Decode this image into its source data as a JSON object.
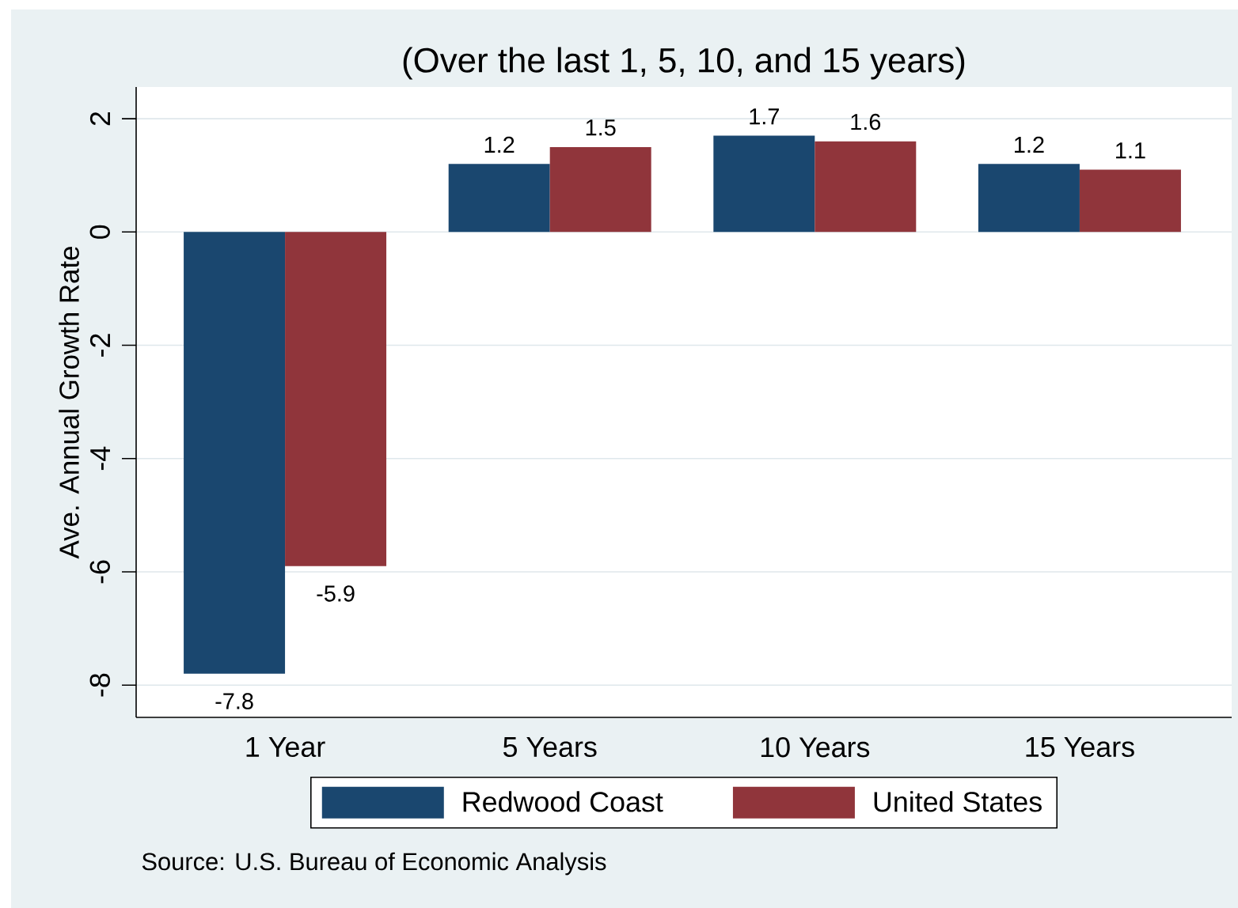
{
  "chart_data": {
    "type": "bar",
    "subtitle": "(Over the last 1, 5, 10, and 15 years)",
    "ylabel": "Ave. Annual Growth Rate",
    "categories": [
      "1 Year",
      "5 Years",
      "10 Years",
      "15 Years"
    ],
    "series": [
      {
        "name": "Redwood Coast",
        "color": "#1a476f",
        "values": [
          -7.8,
          1.2,
          1.7,
          1.2
        ]
      },
      {
        "name": "United States",
        "color": "#90353b",
        "values": [
          -5.9,
          1.5,
          1.6,
          1.1
        ]
      }
    ],
    "ylim": [
      -8.57,
      2.56
    ],
    "yticks": [
      -8,
      -6,
      -4,
      -2,
      0,
      2
    ],
    "grid": "y",
    "legend": "bottom",
    "data_labels": true,
    "annotations": [
      "Source: U.S. Bureau of Economic Analysis"
    ]
  }
}
